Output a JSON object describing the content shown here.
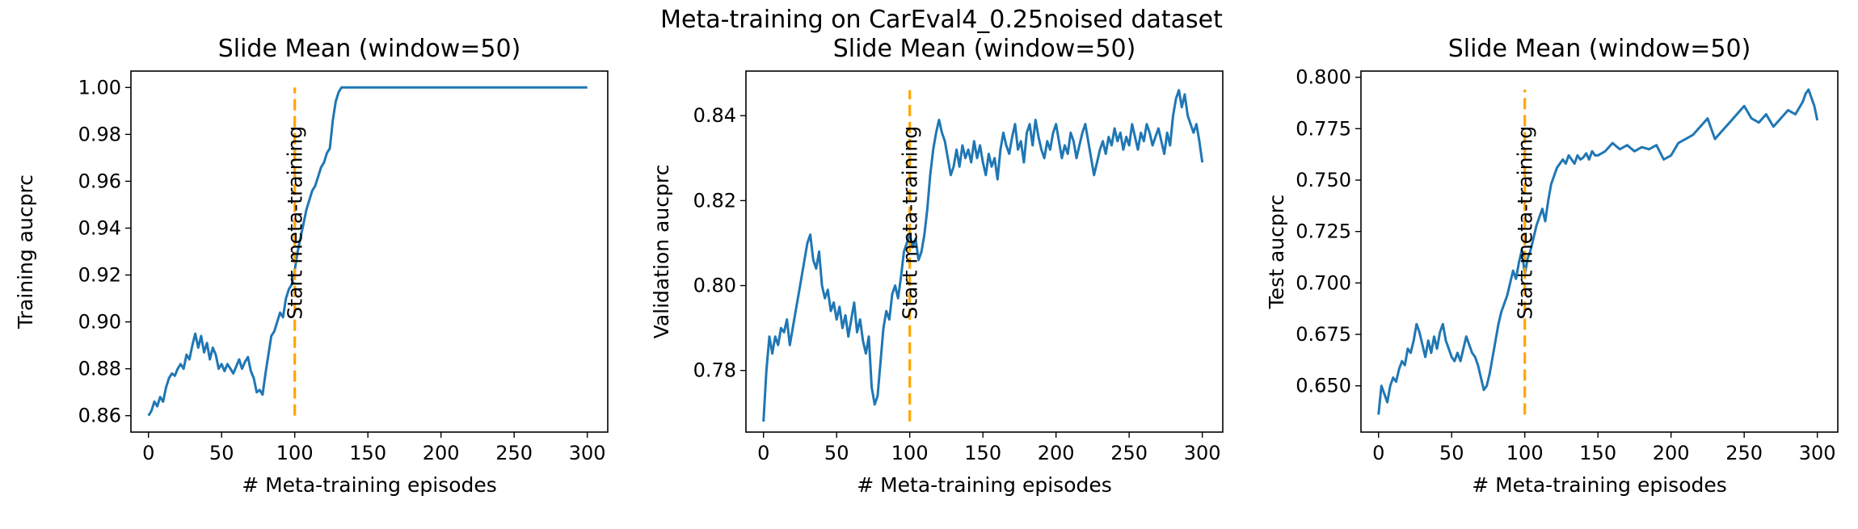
{
  "figure": {
    "suptitle": "Meta-training on CarEval4_0.25noised dataset"
  },
  "colors": {
    "line": "#1f77b4",
    "marker_line": "#ffa500"
  },
  "chart_data": [
    {
      "type": "line",
      "title": "Slide Mean (window=50)",
      "xlabel": "# Meta-training episodes",
      "ylabel": "Training aucprc",
      "xlim": [
        -12,
        314
      ],
      "ylim": [
        0.853,
        1.007
      ],
      "xticks": [
        0,
        50,
        100,
        150,
        200,
        250,
        300
      ],
      "yticks": [
        0.86,
        0.88,
        0.9,
        0.92,
        0.94,
        0.96,
        0.98,
        1.0
      ],
      "ytick_labels": [
        "0.86",
        "0.88",
        "0.90",
        "0.92",
        "0.94",
        "0.96",
        "0.98",
        "1.00"
      ],
      "grid": false,
      "annotation": {
        "label": "Start meta-training",
        "x": 100,
        "y_range": [
          0.86,
          1.0
        ]
      },
      "series": [
        {
          "x": [
            0,
            2,
            4,
            6,
            8,
            10,
            12,
            14,
            16,
            18,
            20,
            22,
            24,
            26,
            28,
            30,
            32,
            34,
            36,
            38,
            40,
            42,
            44,
            46,
            48,
            50,
            52,
            54,
            56,
            58,
            60,
            62,
            64,
            66,
            68,
            70,
            72,
            74,
            76,
            78,
            80,
            82,
            84,
            86,
            88,
            90,
            92,
            94,
            96,
            98,
            100,
            102,
            104,
            106,
            108,
            110,
            112,
            114,
            116,
            118,
            120,
            122,
            124,
            126,
            128,
            130,
            132,
            134,
            136,
            140,
            150,
            175,
            200,
            225,
            250,
            275,
            300
          ],
          "y": [
            0.86,
            0.862,
            0.866,
            0.864,
            0.868,
            0.866,
            0.872,
            0.876,
            0.878,
            0.877,
            0.88,
            0.882,
            0.88,
            0.886,
            0.884,
            0.89,
            0.895,
            0.889,
            0.894,
            0.887,
            0.891,
            0.884,
            0.889,
            0.886,
            0.88,
            0.882,
            0.879,
            0.882,
            0.88,
            0.878,
            0.881,
            0.884,
            0.88,
            0.883,
            0.885,
            0.879,
            0.876,
            0.87,
            0.871,
            0.869,
            0.878,
            0.886,
            0.894,
            0.896,
            0.9,
            0.904,
            0.902,
            0.91,
            0.914,
            0.916,
            0.922,
            0.93,
            0.936,
            0.942,
            0.948,
            0.952,
            0.956,
            0.958,
            0.962,
            0.966,
            0.968,
            0.972,
            0.974,
            0.986,
            0.994,
            0.998,
            1.0,
            1.0,
            1.0,
            1.0,
            1.0,
            1.0,
            1.0,
            1.0,
            1.0,
            1.0,
            1.0
          ]
        }
      ]
    },
    {
      "type": "line",
      "title": "Slide Mean (window=50)",
      "xlabel": "# Meta-training episodes",
      "ylabel": "Validation aucprc",
      "xlim": [
        -12,
        314
      ],
      "ylim": [
        0.7655,
        0.8505
      ],
      "xticks": [
        0,
        50,
        100,
        150,
        200,
        250,
        300
      ],
      "yticks": [
        0.78,
        0.8,
        0.82,
        0.84
      ],
      "ytick_labels": [
        "0.78",
        "0.80",
        "0.82",
        "0.84"
      ],
      "grid": false,
      "annotation": {
        "label": "Start meta-training",
        "x": 100,
        "y_range": [
          0.768,
          0.846
        ]
      },
      "series": [
        {
          "x": [
            0,
            2,
            4,
            6,
            8,
            10,
            12,
            14,
            16,
            18,
            20,
            22,
            24,
            26,
            28,
            30,
            32,
            34,
            36,
            38,
            40,
            42,
            44,
            46,
            48,
            50,
            52,
            54,
            56,
            58,
            60,
            62,
            64,
            66,
            68,
            70,
            72,
            74,
            76,
            78,
            80,
            82,
            84,
            86,
            88,
            90,
            92,
            94,
            96,
            98,
            100,
            102,
            104,
            106,
            108,
            110,
            112,
            114,
            116,
            118,
            120,
            122,
            124,
            126,
            128,
            130,
            132,
            134,
            136,
            138,
            140,
            142,
            144,
            146,
            148,
            150,
            152,
            154,
            156,
            158,
            160,
            162,
            164,
            166,
            168,
            170,
            172,
            174,
            176,
            178,
            180,
            182,
            184,
            186,
            188,
            190,
            192,
            194,
            196,
            198,
            200,
            202,
            204,
            206,
            208,
            210,
            212,
            214,
            216,
            218,
            220,
            222,
            224,
            226,
            228,
            230,
            232,
            234,
            236,
            238,
            240,
            242,
            244,
            246,
            248,
            250,
            252,
            254,
            256,
            258,
            260,
            262,
            264,
            266,
            268,
            270,
            272,
            274,
            276,
            278,
            280,
            282,
            284,
            286,
            288,
            290,
            292,
            294,
            296,
            298,
            300
          ],
          "y": [
            0.768,
            0.78,
            0.788,
            0.784,
            0.788,
            0.786,
            0.79,
            0.789,
            0.792,
            0.786,
            0.79,
            0.794,
            0.798,
            0.802,
            0.806,
            0.81,
            0.812,
            0.806,
            0.804,
            0.808,
            0.8,
            0.797,
            0.799,
            0.794,
            0.796,
            0.792,
            0.795,
            0.79,
            0.793,
            0.788,
            0.792,
            0.796,
            0.789,
            0.792,
            0.787,
            0.784,
            0.788,
            0.776,
            0.772,
            0.774,
            0.782,
            0.79,
            0.794,
            0.792,
            0.798,
            0.8,
            0.797,
            0.802,
            0.808,
            0.81,
            0.812,
            0.809,
            0.811,
            0.806,
            0.808,
            0.812,
            0.818,
            0.826,
            0.832,
            0.836,
            0.839,
            0.836,
            0.834,
            0.83,
            0.826,
            0.828,
            0.832,
            0.828,
            0.833,
            0.83,
            0.832,
            0.829,
            0.834,
            0.83,
            0.833,
            0.829,
            0.826,
            0.831,
            0.828,
            0.83,
            0.825,
            0.832,
            0.836,
            0.833,
            0.831,
            0.835,
            0.838,
            0.832,
            0.834,
            0.829,
            0.836,
            0.838,
            0.833,
            0.839,
            0.835,
            0.832,
            0.83,
            0.834,
            0.832,
            0.836,
            0.838,
            0.834,
            0.83,
            0.833,
            0.831,
            0.836,
            0.834,
            0.83,
            0.833,
            0.836,
            0.838,
            0.834,
            0.83,
            0.826,
            0.829,
            0.832,
            0.834,
            0.831,
            0.835,
            0.833,
            0.837,
            0.834,
            0.836,
            0.832,
            0.835,
            0.833,
            0.838,
            0.835,
            0.832,
            0.836,
            0.834,
            0.838,
            0.836,
            0.833,
            0.835,
            0.837,
            0.834,
            0.831,
            0.836,
            0.833,
            0.84,
            0.844,
            0.846,
            0.842,
            0.845,
            0.84,
            0.838,
            0.836,
            0.838,
            0.834,
            0.829
          ]
        }
      ]
    },
    {
      "type": "line",
      "title": "Slide Mean (window=50)",
      "xlabel": "# Meta-training episodes",
      "ylabel": "Test aucprc",
      "xlim": [
        -12,
        314
      ],
      "ylim": [
        0.6275,
        0.803
      ],
      "xticks": [
        0,
        50,
        100,
        150,
        200,
        250,
        300
      ],
      "yticks": [
        0.65,
        0.675,
        0.7,
        0.725,
        0.75,
        0.775,
        0.8
      ],
      "ytick_labels": [
        "0.650",
        "0.675",
        "0.700",
        "0.725",
        "0.750",
        "0.775",
        "0.800"
      ],
      "grid": false,
      "annotation": {
        "label": "Start meta-training",
        "x": 100,
        "y_range": [
          0.636,
          0.794
        ]
      },
      "series": [
        {
          "x": [
            0,
            2,
            4,
            6,
            8,
            10,
            12,
            14,
            16,
            18,
            20,
            22,
            24,
            26,
            28,
            30,
            32,
            34,
            36,
            38,
            40,
            42,
            44,
            46,
            48,
            50,
            52,
            54,
            56,
            58,
            60,
            62,
            64,
            66,
            68,
            70,
            72,
            74,
            76,
            78,
            80,
            82,
            84,
            86,
            88,
            90,
            92,
            94,
            96,
            98,
            100,
            102,
            104,
            106,
            108,
            110,
            112,
            114,
            116,
            118,
            120,
            122,
            124,
            126,
            128,
            130,
            132,
            134,
            136,
            138,
            140,
            142,
            144,
            146,
            148,
            150,
            155,
            160,
            165,
            170,
            175,
            180,
            185,
            190,
            195,
            200,
            205,
            210,
            215,
            220,
            225,
            230,
            235,
            240,
            245,
            250,
            255,
            260,
            265,
            270,
            275,
            280,
            285,
            290,
            292,
            294,
            296,
            298,
            300
          ],
          "y": [
            0.636,
            0.65,
            0.646,
            0.642,
            0.65,
            0.654,
            0.652,
            0.658,
            0.662,
            0.66,
            0.668,
            0.666,
            0.672,
            0.68,
            0.676,
            0.67,
            0.664,
            0.672,
            0.666,
            0.674,
            0.668,
            0.676,
            0.68,
            0.672,
            0.668,
            0.664,
            0.662,
            0.666,
            0.662,
            0.668,
            0.674,
            0.67,
            0.666,
            0.664,
            0.66,
            0.654,
            0.648,
            0.65,
            0.656,
            0.664,
            0.672,
            0.68,
            0.686,
            0.69,
            0.694,
            0.7,
            0.706,
            0.702,
            0.71,
            0.716,
            0.704,
            0.712,
            0.716,
            0.722,
            0.728,
            0.732,
            0.736,
            0.73,
            0.74,
            0.748,
            0.752,
            0.756,
            0.758,
            0.76,
            0.758,
            0.762,
            0.76,
            0.758,
            0.762,
            0.76,
            0.761,
            0.763,
            0.76,
            0.764,
            0.762,
            0.762,
            0.764,
            0.768,
            0.765,
            0.767,
            0.764,
            0.766,
            0.765,
            0.767,
            0.76,
            0.762,
            0.768,
            0.77,
            0.772,
            0.776,
            0.78,
            0.77,
            0.774,
            0.778,
            0.782,
            0.786,
            0.78,
            0.778,
            0.782,
            0.776,
            0.78,
            0.784,
            0.782,
            0.788,
            0.792,
            0.794,
            0.79,
            0.786,
            0.779
          ]
        }
      ]
    }
  ]
}
